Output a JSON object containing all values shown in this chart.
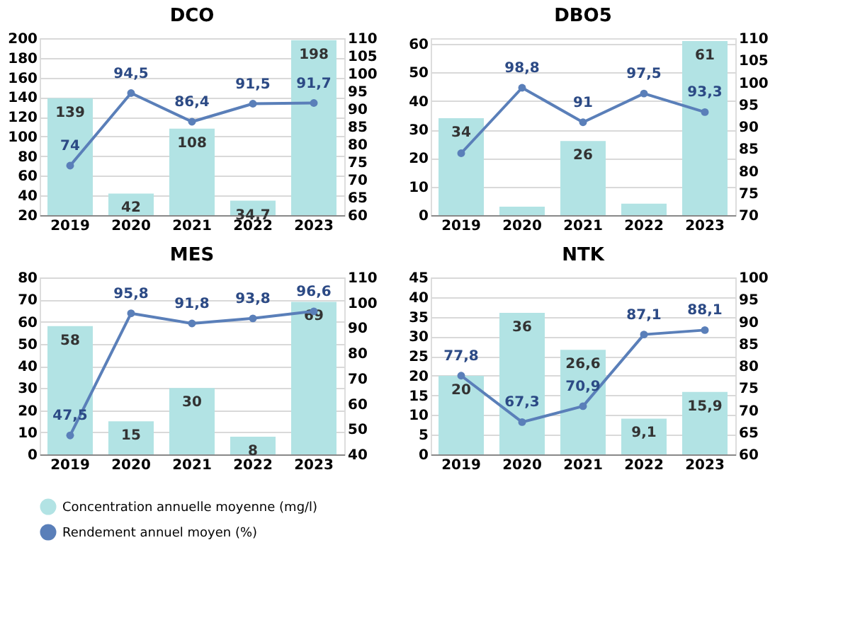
{
  "chart_data": [
    {
      "type": "bar",
      "title": "DCO",
      "categories": [
        "2019",
        "2020",
        "2021",
        "2022",
        "2023"
      ],
      "ylim": [
        20,
        200
      ],
      "yticks": [
        20,
        40,
        60,
        80,
        100,
        120,
        140,
        160,
        180,
        200
      ],
      "y2lim": [
        60,
        110
      ],
      "y2ticks": [
        60,
        65,
        70,
        75,
        80,
        85,
        90,
        95,
        100,
        105,
        110
      ],
      "grid": "y",
      "legend": "bottom",
      "series": [
        {
          "name": "Concentration annuelle moyenne (mg/l)",
          "color": "#b2e3e4",
          "values": [
            139,
            42,
            108,
            34.7,
            198
          ],
          "value_labels": [
            "139",
            "42",
            "108",
            "34,7",
            "198"
          ]
        },
        {
          "name": "Rendement annuel moyen (%)",
          "type": "line",
          "axis": "y2",
          "marker": "circle",
          "color": "#5a7fb9",
          "values": [
            74,
            94.5,
            86.4,
            91.5,
            91.7
          ],
          "value_labels": [
            "74",
            "94,5",
            "86,4",
            "91,5",
            "91,7"
          ]
        }
      ]
    },
    {
      "type": "bar",
      "title": "DBO5",
      "categories": [
        "2019",
        "2020",
        "2021",
        "2022",
        "2023"
      ],
      "ylim": [
        0,
        62
      ],
      "yticks": [
        0,
        10,
        20,
        30,
        40,
        50,
        60
      ],
      "y2lim": [
        70,
        110
      ],
      "y2ticks": [
        70,
        75,
        80,
        85,
        90,
        95,
        100,
        105,
        110
      ],
      "grid": "y",
      "legend": "bottom",
      "series": [
        {
          "name": "Concentration annuelle moyenne (mg/l)",
          "color": "#b2e3e4",
          "values": [
            34,
            3,
            26,
            4,
            61
          ],
          "value_labels": [
            "34",
            null,
            "26",
            null,
            "61"
          ]
        },
        {
          "name": "Rendement annuel moyen (%)",
          "type": "line",
          "axis": "y2",
          "marker": "circle",
          "color": "#5a7fb9",
          "values": [
            84,
            98.8,
            91,
            97.5,
            93.3
          ],
          "value_labels": [
            null,
            "98,8",
            "91",
            "97,5",
            "93,3"
          ]
        }
      ]
    },
    {
      "type": "bar",
      "title": "MES",
      "categories": [
        "2019",
        "2020",
        "2021",
        "2022",
        "2023"
      ],
      "ylim": [
        0,
        80
      ],
      "yticks": [
        0,
        10,
        20,
        30,
        40,
        50,
        60,
        70,
        80
      ],
      "y2lim": [
        40,
        110
      ],
      "y2ticks": [
        40,
        50,
        60,
        70,
        80,
        90,
        100,
        110
      ],
      "grid": "y",
      "legend": "bottom",
      "series": [
        {
          "name": "Concentration annuelle moyenne (mg/l)",
          "color": "#b2e3e4",
          "values": [
            58,
            15,
            30,
            8,
            69
          ],
          "value_labels": [
            "58",
            "15",
            "30",
            "8",
            "69"
          ]
        },
        {
          "name": "Rendement annuel moyen (%)",
          "type": "line",
          "axis": "y2",
          "marker": "circle",
          "color": "#5a7fb9",
          "values": [
            47.5,
            95.8,
            91.8,
            93.8,
            96.6
          ],
          "value_labels": [
            "47,5",
            "95,8",
            "91,8",
            "93,8",
            "96,6"
          ]
        }
      ]
    },
    {
      "type": "bar",
      "title": "NTK",
      "categories": [
        "2019",
        "2020",
        "2021",
        "2022",
        "2023"
      ],
      "ylim": [
        0,
        45
      ],
      "yticks": [
        0,
        5,
        10,
        15,
        20,
        25,
        30,
        35,
        40,
        45
      ],
      "y2lim": [
        60,
        100
      ],
      "y2ticks": [
        60,
        65,
        70,
        75,
        80,
        85,
        90,
        95,
        100
      ],
      "grid": "y",
      "legend": "bottom",
      "series": [
        {
          "name": "Concentration annuelle moyenne (mg/l)",
          "color": "#b2e3e4",
          "values": [
            20,
            36,
            26.6,
            9.1,
            15.9
          ],
          "value_labels": [
            "20",
            "36",
            "26,6",
            "9,1",
            "15,9"
          ]
        },
        {
          "name": "Rendement annuel moyen (%)",
          "type": "line",
          "axis": "y2",
          "marker": "circle",
          "color": "#5a7fb9",
          "values": [
            77.8,
            67.3,
            70.9,
            87.1,
            88.1
          ],
          "value_labels": [
            "77,8",
            "67,3",
            "70,9",
            "87,1",
            "88,1"
          ]
        }
      ]
    }
  ]
}
